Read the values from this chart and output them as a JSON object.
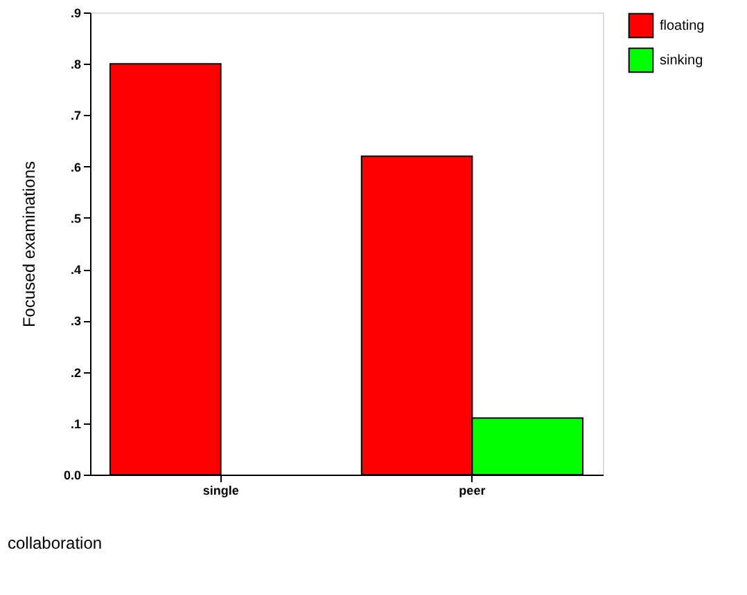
{
  "chart_data": {
    "type": "bar",
    "xlabel": "collaboration",
    "ylabel": "Focused examinations",
    "categories": [
      "single",
      "peer"
    ],
    "series": [
      {
        "name": "floating",
        "color": "#ff0000",
        "values": [
          0.8,
          0.62
        ]
      },
      {
        "name": "sinking",
        "color": "#00ff00",
        "values": [
          null,
          0.11
        ]
      }
    ],
    "ylim": [
      0,
      0.9
    ],
    "yticks": [
      {
        "value": 0,
        "label": "0.0"
      },
      {
        "value": 0.1,
        "label": ".1"
      },
      {
        "value": 0.2,
        "label": ".2"
      },
      {
        "value": 0.3,
        "label": ".3"
      },
      {
        "value": 0.4,
        "label": ".4"
      },
      {
        "value": 0.5,
        "label": ".5"
      },
      {
        "value": 0.6,
        "label": ".6"
      },
      {
        "value": 0.7,
        "label": ".7"
      },
      {
        "value": 0.8,
        "label": ".8"
      },
      {
        "value": 0.9,
        "label": ".9"
      }
    ],
    "grid": false,
    "legend": "right"
  }
}
